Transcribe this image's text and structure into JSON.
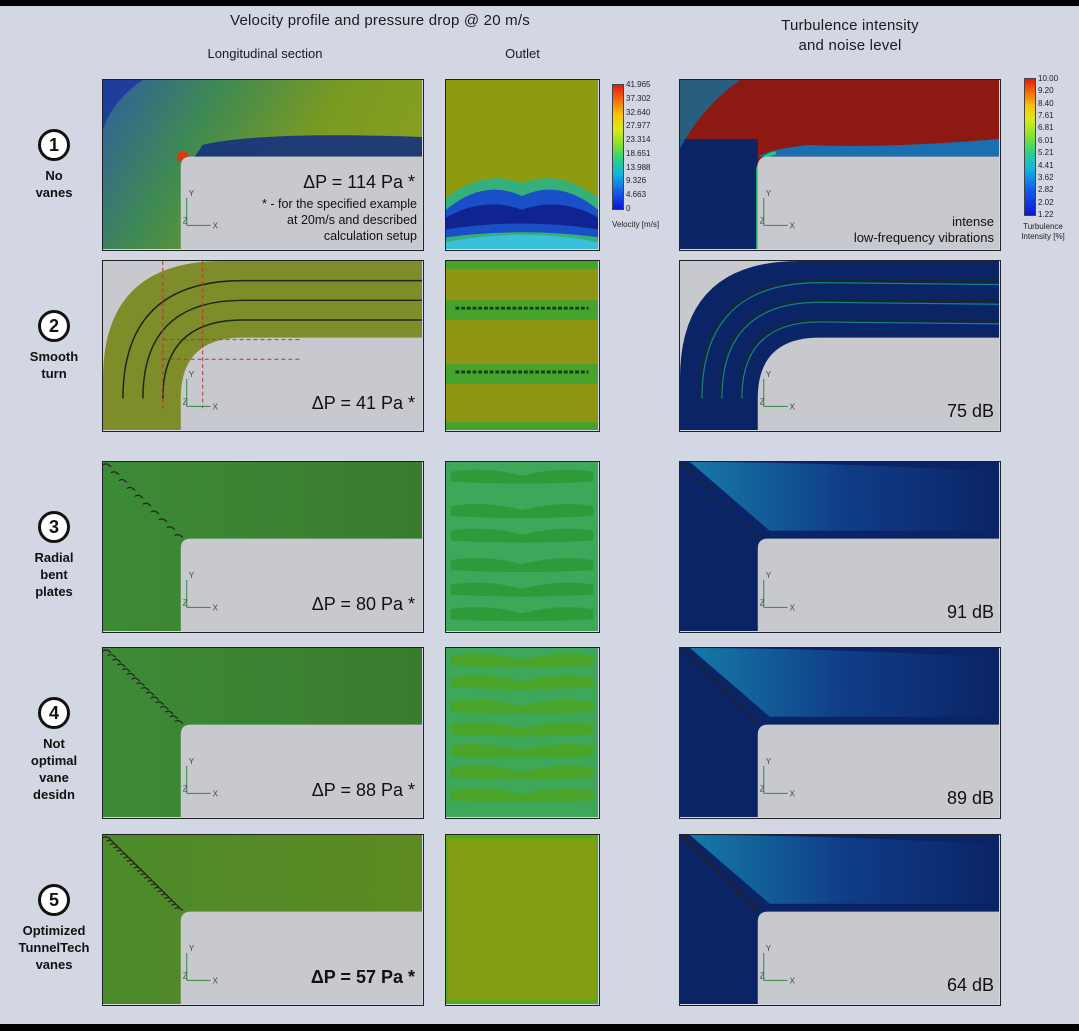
{
  "headers": {
    "left_title": "Velocity profile and pressure drop @ 20 m/s",
    "longitudinal": "Longitudinal section",
    "outlet": "Outlet",
    "right_title_line1": "Turbulence intensity",
    "right_title_line2": "and noise level"
  },
  "legend_velocity": {
    "ticks": [
      "41.965",
      "37.302",
      "32.640",
      "27.977",
      "23.314",
      "18.651",
      "13.988",
      "9.326",
      "4.663",
      "0"
    ],
    "title": "Velocity [m/s]"
  },
  "legend_turbulence": {
    "ticks": [
      "10.00",
      "9.20",
      "8.40",
      "7.61",
      "6.81",
      "6.01",
      "5.21",
      "4.41",
      "3.62",
      "2.82",
      "2.02",
      "1.22"
    ],
    "title_line1": "Turbulence",
    "title_line2": "Intensity [%]"
  },
  "colors": {
    "background": "#d3d7e3",
    "solid_grey": "#c8c9ce",
    "velocity_olive": "#6f8f22",
    "velocity_green": "#3f8a32",
    "turbulence_navy": "#0b2466",
    "turbulence_red": "#8d1a12"
  },
  "axis": {
    "y": "Y",
    "z": "Z",
    "x": "X"
  },
  "rows": [
    {
      "number": "1",
      "name": "No\nvanes",
      "pressure_drop": "ΔP = 114 Pa *",
      "note": [
        "* - for the specified example",
        "at 20m/s and described",
        "calculation setup"
      ],
      "turbulence_note": [
        "intense",
        "low-frequency vibrations"
      ],
      "noise": ""
    },
    {
      "number": "2",
      "name": "Smooth\nturn",
      "pressure_drop": "ΔP = 41 Pa *",
      "note": [],
      "turbulence_note": [],
      "noise": "75 dB"
    },
    {
      "number": "3",
      "name": "Radial\nbent\nplates",
      "pressure_drop": "ΔP = 80 Pa *",
      "note": [],
      "turbulence_note": [],
      "noise": "91 dB"
    },
    {
      "number": "4",
      "name": "Not\noptimal\nvane\ndesidn",
      "pressure_drop": "ΔP = 88 Pa *",
      "note": [],
      "turbulence_note": [],
      "noise": "89 dB"
    },
    {
      "number": "5",
      "name": "Optimized\nTunnelTech\nvanes",
      "pressure_drop": "ΔP = 57 Pa *",
      "note": [],
      "turbulence_note": [],
      "noise": "64 dB"
    }
  ]
}
